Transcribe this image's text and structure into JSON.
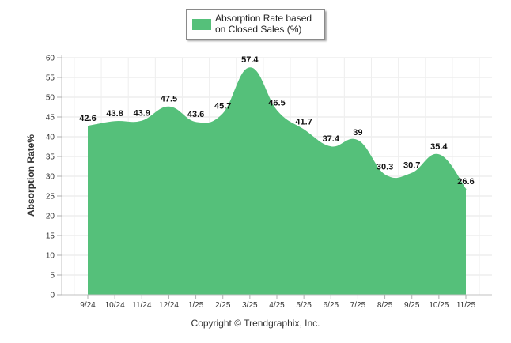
{
  "chart_data": {
    "type": "area",
    "title": "",
    "xlabel": "",
    "ylabel": "Absorption Rate%",
    "ylim": [
      0,
      60
    ],
    "ytick_step": 5,
    "grid": true,
    "legend_placement": "top-center",
    "categories": [
      "9/24",
      "10/24",
      "11/24",
      "12/24",
      "1/25",
      "2/25",
      "3/25",
      "4/25",
      "5/25",
      "6/25",
      "7/25",
      "8/25",
      "9/25",
      "10/25",
      "11/25"
    ],
    "series": [
      {
        "name": "Absorption Rate based on Closed Sales (%)",
        "color": "#55c07a",
        "values": [
          42.6,
          43.8,
          43.9,
          47.5,
          43.6,
          45.7,
          57.4,
          46.5,
          41.7,
          37.4,
          39,
          30.3,
          30.7,
          35.4,
          26.6
        ]
      }
    ]
  },
  "legend": {
    "label": "Absorption Rate based on Closed Sales (%)"
  },
  "footer": {
    "copyright": "Copyright © Trendgraphix, Inc."
  }
}
